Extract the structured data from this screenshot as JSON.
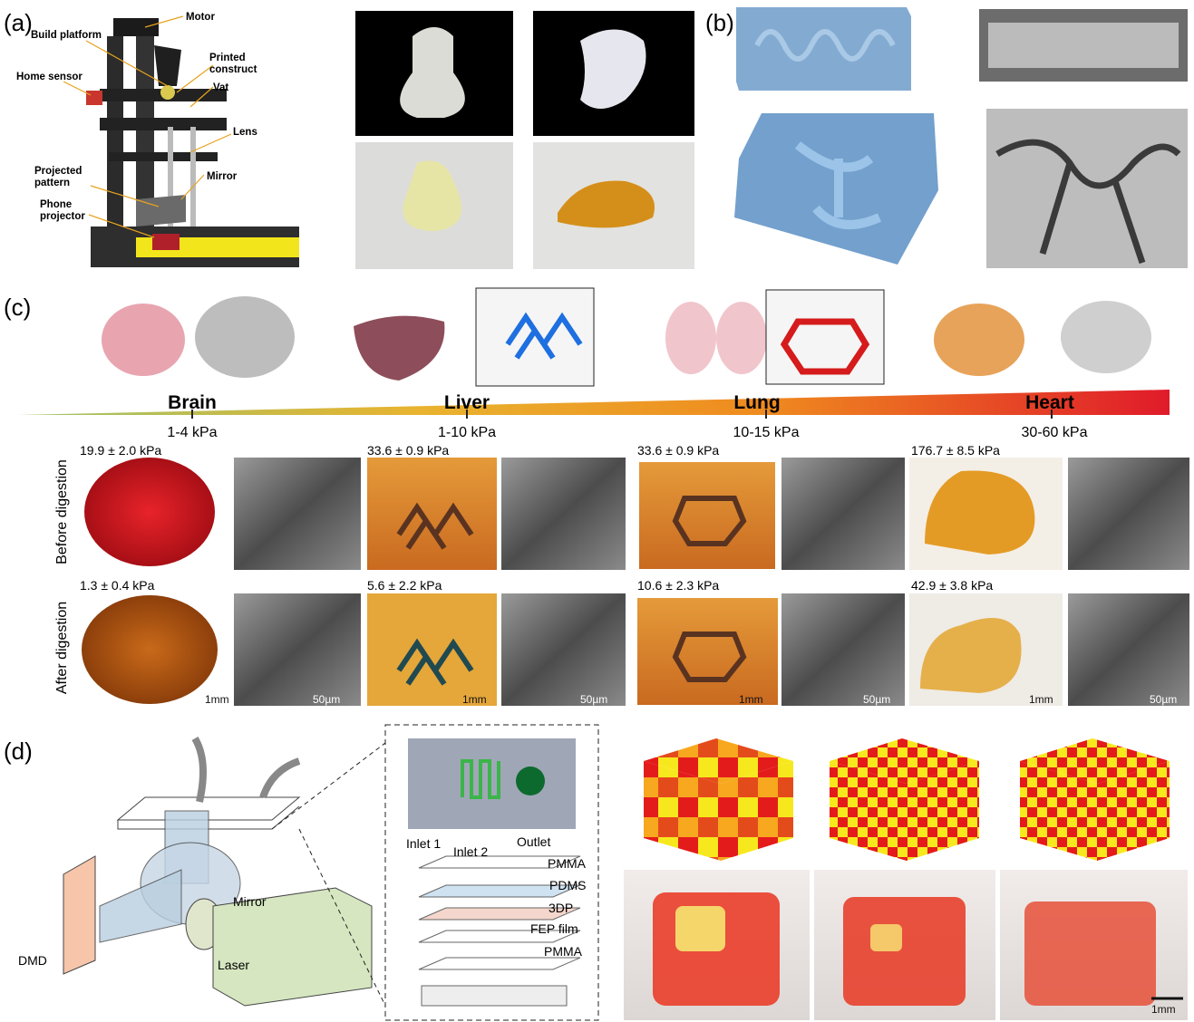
{
  "panels": {
    "a": {
      "label": "(a)",
      "callouts": [
        [
          "Motor"
        ],
        [
          "Build platform"
        ],
        [
          "Printed",
          "construct"
        ],
        [
          "Home sensor"
        ],
        [
          "Vat"
        ],
        [
          "Lens"
        ],
        [
          "Projected",
          "pattern"
        ],
        [
          "Mirror"
        ],
        [
          "Phone",
          "projector"
        ]
      ]
    },
    "b": {
      "label": "(b)"
    },
    "c": {
      "label": "(c)",
      "organs": [
        {
          "name": "Brain",
          "stiffness": "1-4 kPa",
          "before": "19.9 ± 2.0 kPa",
          "after": "1.3 ± 0.4 kPa"
        },
        {
          "name": "Liver",
          "stiffness": "1-10 kPa",
          "before": "33.6 ± 0.9 kPa",
          "after": "5.6 ± 2.2 kPa"
        },
        {
          "name": "Lung",
          "stiffness": "10-15 kPa",
          "before": "33.6 ± 0.9 kPa",
          "after": "10.6 ± 2.3 kPa"
        },
        {
          "name": "Heart",
          "stiffness": "30-60 kPa",
          "before": "176.7 ± 8.5 kPa",
          "after": "42.9 ± 3.8 kPa"
        }
      ],
      "row_labels": [
        "Before digestion",
        "After digestion"
      ],
      "scale_bars": {
        "photo": "1mm",
        "sem": "50µm"
      }
    },
    "d": {
      "label": "(d)",
      "setup_labels": [
        "DMD",
        "Mirror",
        "Laser"
      ],
      "chip_labels": [
        "Inlet 1",
        "Inlet 2",
        "Outlet"
      ],
      "layers": [
        "PMMA",
        "PDMS",
        "3DP",
        "FEP film",
        "PMMA"
      ],
      "scale_bar": "1mm"
    }
  }
}
